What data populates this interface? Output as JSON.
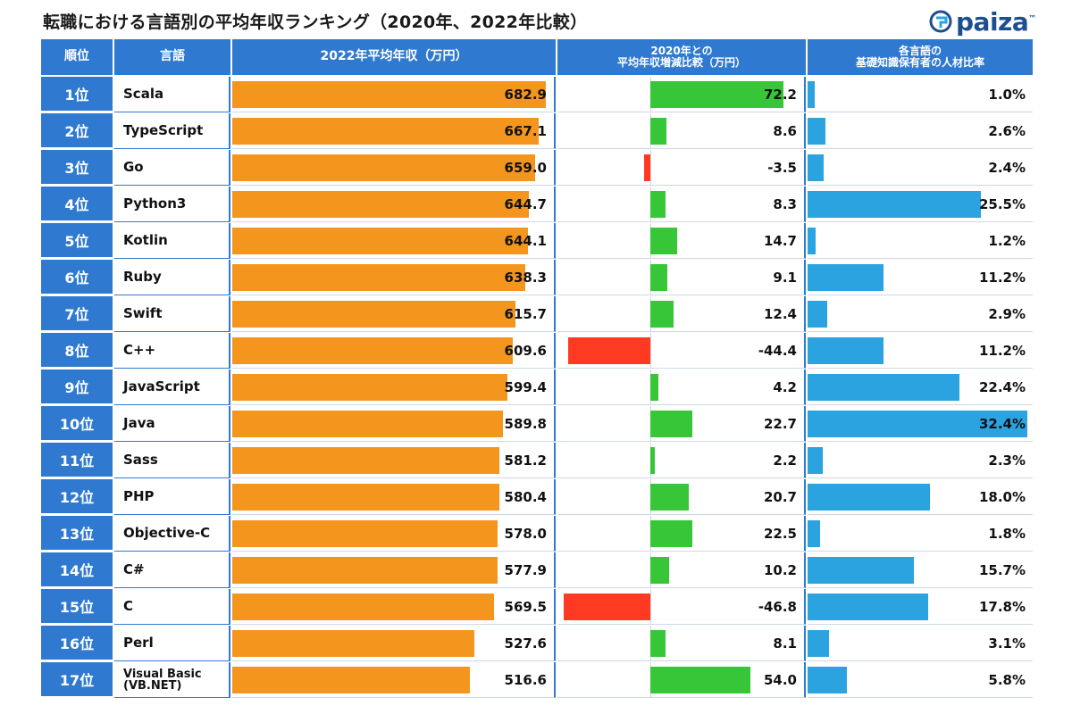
{
  "page": {
    "title": "転職における言語別の平均年収ランキング（2020年、2022年比較）",
    "brand": "paiza",
    "brand_mark": "™"
  },
  "headers": {
    "rank": "順位",
    "language": "言語",
    "salary": "2022年平均年収（万円）",
    "change_line1": "2020年との",
    "change_line2": "平均年収増減比較（万円）",
    "share_line1": "各言語の",
    "share_line2": "基礎知識保有者の人材比率"
  },
  "colors": {
    "header_blue": "#2f7ad0",
    "salary_bar": "#f4961e",
    "increase_bar": "#36c638",
    "decrease_bar": "#ff3a22",
    "share_bar": "#2aa3e0"
  },
  "chart_data": {
    "type": "table",
    "title": "転職における言語別の平均年収ランキング（2020年、2022年比較）",
    "columns": [
      "順位",
      "言語",
      "2022年平均年収（万円）",
      "2020年との平均年収増減比較（万円）",
      "各言語の基礎知識保有者の人材比率"
    ],
    "rows": [
      {
        "rank": "1位",
        "language": "Scala",
        "salary": 682.9,
        "salary_label": "682.9",
        "change": 72.2,
        "change_label": "72.2",
        "share": 1.0,
        "share_label": "1.0%"
      },
      {
        "rank": "2位",
        "language": "TypeScript",
        "salary": 667.1,
        "salary_label": "667.1",
        "change": 8.6,
        "change_label": "8.6",
        "share": 2.6,
        "share_label": "2.6%"
      },
      {
        "rank": "3位",
        "language": "Go",
        "salary": 659.0,
        "salary_label": "659.0",
        "change": -3.5,
        "change_label": "-3.5",
        "share": 2.4,
        "share_label": "2.4%"
      },
      {
        "rank": "4位",
        "language": "Python3",
        "salary": 644.7,
        "salary_label": "644.7",
        "change": 8.3,
        "change_label": "8.3",
        "share": 25.5,
        "share_label": "25.5%"
      },
      {
        "rank": "5位",
        "language": "Kotlin",
        "salary": 644.1,
        "salary_label": "644.1",
        "change": 14.7,
        "change_label": "14.7",
        "share": 1.2,
        "share_label": "1.2%"
      },
      {
        "rank": "6位",
        "language": "Ruby",
        "salary": 638.3,
        "salary_label": "638.3",
        "change": 9.1,
        "change_label": "9.1",
        "share": 11.2,
        "share_label": "11.2%"
      },
      {
        "rank": "7位",
        "language": "Swift",
        "salary": 615.7,
        "salary_label": "615.7",
        "change": 12.4,
        "change_label": "12.4",
        "share": 2.9,
        "share_label": "2.9%"
      },
      {
        "rank": "8位",
        "language": "C++",
        "salary": 609.6,
        "salary_label": "609.6",
        "change": -44.4,
        "change_label": "-44.4",
        "share": 11.2,
        "share_label": "11.2%"
      },
      {
        "rank": "9位",
        "language": "JavaScript",
        "salary": 599.4,
        "salary_label": "599.4",
        "change": 4.2,
        "change_label": "4.2",
        "share": 22.4,
        "share_label": "22.4%"
      },
      {
        "rank": "10位",
        "language": "Java",
        "salary": 589.8,
        "salary_label": "589.8",
        "change": 22.7,
        "change_label": "22.7",
        "share": 32.4,
        "share_label": "32.4%"
      },
      {
        "rank": "11位",
        "language": "Sass",
        "salary": 581.2,
        "salary_label": "581.2",
        "change": 2.2,
        "change_label": "2.2",
        "share": 2.3,
        "share_label": "2.3%"
      },
      {
        "rank": "12位",
        "language": "PHP",
        "salary": 580.4,
        "salary_label": "580.4",
        "change": 20.7,
        "change_label": "20.7",
        "share": 18.0,
        "share_label": "18.0%"
      },
      {
        "rank": "13位",
        "language": "Objective-C",
        "salary": 578.0,
        "salary_label": "578.0",
        "change": 22.5,
        "change_label": "22.5",
        "share": 1.8,
        "share_label": "1.8%"
      },
      {
        "rank": "14位",
        "language": "C#",
        "salary": 577.9,
        "salary_label": "577.9",
        "change": 10.2,
        "change_label": "10.2",
        "share": 15.7,
        "share_label": "15.7%"
      },
      {
        "rank": "15位",
        "language": "C",
        "salary": 569.5,
        "salary_label": "569.5",
        "change": -46.8,
        "change_label": "-46.8",
        "share": 17.8,
        "share_label": "17.8%"
      },
      {
        "rank": "16位",
        "language": "Perl",
        "salary": 527.6,
        "salary_label": "527.6",
        "change": 8.1,
        "change_label": "8.1",
        "share": 3.1,
        "share_label": "3.1%"
      },
      {
        "rank": "17位",
        "language": "Visual Basic\n(VB.NET)",
        "salary": 516.6,
        "salary_label": "516.6",
        "change": 54.0,
        "change_label": "54.0",
        "share": 5.8,
        "share_label": "5.8%"
      }
    ]
  }
}
